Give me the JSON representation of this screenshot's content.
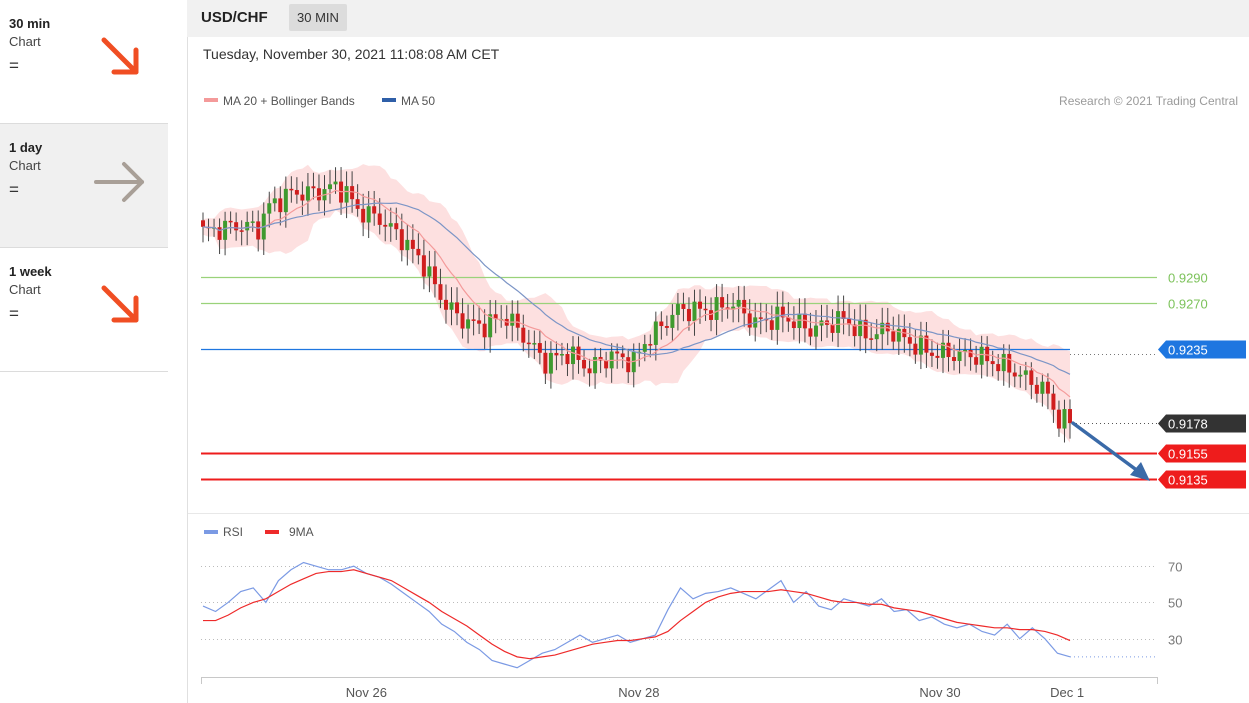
{
  "sidebar": {
    "items": [
      {
        "label": "30 min",
        "sub": "Chart",
        "symbol": "=",
        "direction": "down",
        "color": "#f04e23"
      },
      {
        "label": "1 day",
        "sub": "Chart",
        "symbol": "=",
        "direction": "neutral",
        "color": "#a89f97"
      },
      {
        "label": "1 week",
        "sub": "Chart",
        "symbol": "=",
        "direction": "down",
        "color": "#f04e23"
      }
    ]
  },
  "header": {
    "pair": "USD/CHF",
    "timeframe": "30 MIN"
  },
  "chart_data": {
    "type": "candlestick",
    "date_label": "Tuesday, November 30, 2021 11:08:08 AM CET",
    "credit": "Research © 2021 Trading Central",
    "legend": [
      {
        "name": "MA 20 + Bollinger Bands",
        "color": "#f49a9a"
      },
      {
        "name": "MA 50",
        "color": "#2f5fa8"
      }
    ],
    "y_range": [
      0.9115,
      0.9415
    ],
    "levels": [
      {
        "value": 0.929,
        "label": "0.9290",
        "kind": "resistance",
        "color": "#9ad27a"
      },
      {
        "value": 0.927,
        "label": "0.9270",
        "kind": "resistance",
        "color": "#9ad27a"
      },
      {
        "value": 0.9235,
        "label": "0.9235",
        "kind": "pivot",
        "color": "#1e76e0"
      },
      {
        "value": 0.9178,
        "label": "0.9178",
        "kind": "last",
        "color": "#333333"
      },
      {
        "value": 0.9155,
        "label": "0.9155",
        "kind": "support",
        "color": "#ee1c1c"
      },
      {
        "value": 0.9135,
        "label": "0.9135",
        "kind": "support",
        "color": "#ee1c1c"
      }
    ],
    "candle_close_path": [
      [
        0,
        0.9325
      ],
      [
        6,
        0.933
      ],
      [
        10,
        0.9328
      ],
      [
        12,
        0.9345
      ],
      [
        16,
        0.9355
      ],
      [
        20,
        0.9355
      ],
      [
        24,
        0.936
      ],
      [
        26,
        0.9355
      ],
      [
        28,
        0.9342
      ],
      [
        32,
        0.9335
      ],
      [
        36,
        0.932
      ],
      [
        40,
        0.93
      ],
      [
        43,
        0.9275
      ],
      [
        46,
        0.926
      ],
      [
        50,
        0.9252
      ],
      [
        55,
        0.926
      ],
      [
        58,
        0.9245
      ],
      [
        62,
        0.9225
      ],
      [
        66,
        0.9232
      ],
      [
        70,
        0.922
      ],
      [
        74,
        0.923
      ],
      [
        78,
        0.9225
      ],
      [
        80,
        0.924
      ],
      [
        86,
        0.9265
      ],
      [
        92,
        0.9265
      ],
      [
        96,
        0.927
      ],
      [
        100,
        0.9255
      ],
      [
        105,
        0.926
      ],
      [
        110,
        0.925
      ],
      [
        116,
        0.9258
      ],
      [
        120,
        0.9245
      ],
      [
        124,
        0.925
      ],
      [
        128,
        0.924
      ],
      [
        132,
        0.9232
      ],
      [
        140,
        0.923
      ],
      [
        146,
        0.922
      ],
      [
        150,
        0.921
      ],
      [
        153,
        0.92
      ],
      [
        155,
        0.918
      ],
      [
        157,
        0.9178
      ]
    ],
    "rsi_panel": {
      "legend": [
        {
          "name": "RSI",
          "color": "#7b9ae4"
        },
        {
          "name": "9MA",
          "color": "#ee2a2a"
        }
      ],
      "levels": [
        70,
        50,
        30
      ],
      "y_range": [
        10,
        80
      ],
      "rsi": [
        48,
        45,
        50,
        56,
        58,
        50,
        62,
        68,
        72,
        70,
        68,
        68,
        70,
        66,
        64,
        60,
        55,
        50,
        45,
        38,
        34,
        28,
        24,
        18,
        16,
        14,
        18,
        22,
        24,
        28,
        32,
        28,
        30,
        32,
        28,
        30,
        32,
        46,
        58,
        52,
        55,
        56,
        58,
        55,
        52,
        57,
        62,
        50,
        56,
        48,
        46,
        52,
        50,
        48,
        52,
        45,
        46,
        40,
        42,
        38,
        36,
        38,
        34,
        32,
        38,
        30,
        36,
        30,
        22,
        20
      ],
      "ma9": [
        40,
        40,
        43,
        47,
        50,
        52,
        56,
        60,
        63,
        66,
        67,
        67,
        68,
        66,
        64,
        62,
        58,
        54,
        50,
        45,
        41,
        37,
        32,
        27,
        23,
        20,
        19,
        20,
        21,
        23,
        25,
        27,
        28,
        29,
        29,
        30,
        31,
        34,
        40,
        45,
        50,
        53,
        55,
        56,
        56,
        56,
        57,
        56,
        55,
        53,
        51,
        50,
        50,
        49,
        49,
        47,
        46,
        45,
        43,
        41,
        39,
        38,
        37,
        36,
        36,
        35,
        35,
        34,
        32,
        29
      ]
    },
    "x_labels": [
      {
        "label": "Nov 26",
        "pos": 0.173
      },
      {
        "label": "Nov 28",
        "pos": 0.458
      },
      {
        "label": "Nov 30",
        "pos": 0.773
      },
      {
        "label": "Dec 1",
        "pos": 0.906
      }
    ]
  }
}
